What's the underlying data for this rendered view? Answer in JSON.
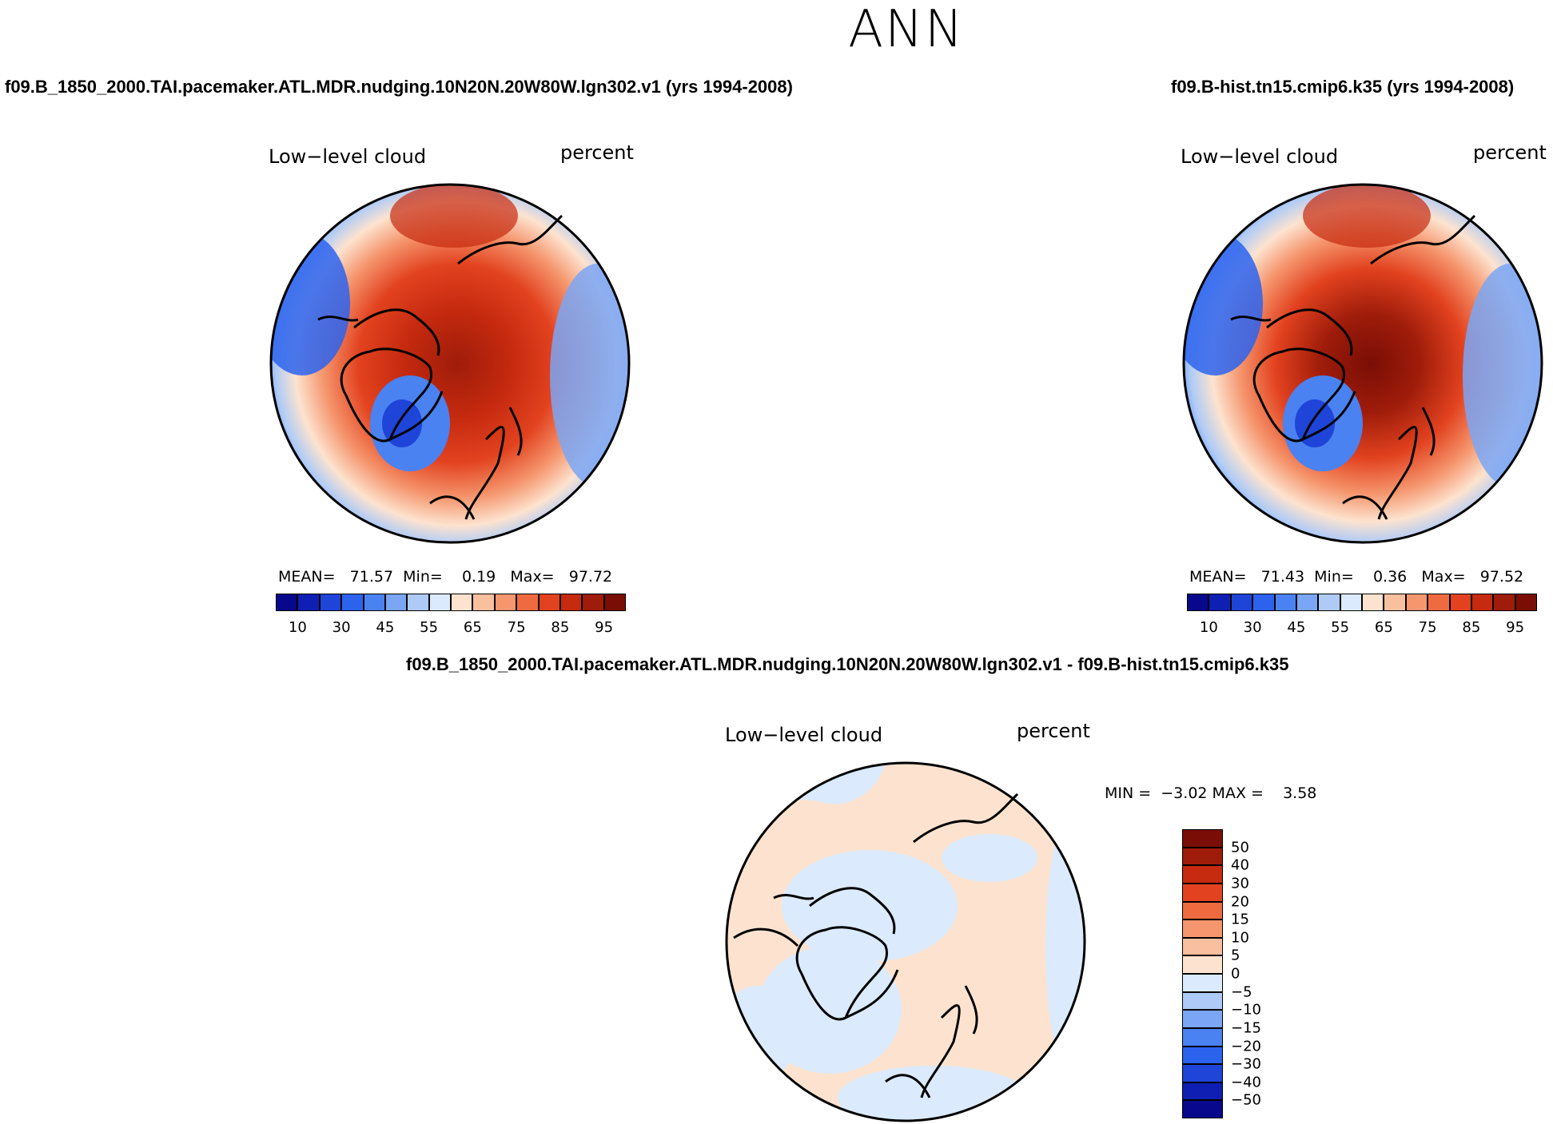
{
  "title": "ANN",
  "left_panel": {
    "case_title": "f09.B_1850_2000.TAI.pacemaker.ATL.MDR.nudging.10N20N.20W80W.lgn302.v1 (yrs 1994-2008)",
    "variable": "Low−level cloud",
    "units": "percent",
    "stats": {
      "mean_label": "MEAN=",
      "mean": "71.57",
      "min_label": "Min=",
      "min": "0.19",
      "max_label": "Max=",
      "max": "97.72"
    }
  },
  "right_panel": {
    "case_title": "f09.B-hist.tn15.cmip6.k35 (yrs 1994-2008)",
    "variable": "Low−level cloud",
    "units": "percent",
    "stats": {
      "mean_label": "MEAN=",
      "mean": "71.43",
      "min_label": "Min=",
      "min": "0.36",
      "max_label": "Max=",
      "max": "97.52"
    }
  },
  "diff_panel": {
    "case_title": "f09.B_1850_2000.TAI.pacemaker.ATL.MDR.nudging.10N20N.20W80W.lgn302.v1 - f09.B-hist.tn15.cmip6.k35",
    "variable": "Low−level cloud",
    "units": "percent",
    "stats": {
      "min_label": "MIN =",
      "min": "−3.02",
      "max_label": "MAX =",
      "max": "3.58"
    }
  },
  "chart_data": [
    {
      "type": "heatmap",
      "projection": "north-polar-stereographic",
      "title": "f09.B_1850_2000.TAI.pacemaker.ATL.MDR.nudging.10N20N.20W80W.lgn302.v1 (yrs 1994-2008)",
      "variable": "Low-level cloud",
      "units": "percent",
      "mean": 71.57,
      "min": 0.19,
      "max": 97.72,
      "colorbar_levels": [
        10,
        20,
        30,
        40,
        45,
        50,
        55,
        60,
        65,
        70,
        75,
        80,
        85,
        90,
        95
      ],
      "colorbar_tick_labels": [
        "10",
        "30",
        "45",
        "55",
        "65",
        "75",
        "85",
        "95"
      ],
      "colors": [
        "#08088c",
        "#0f1fb4",
        "#1f44d8",
        "#2c63ee",
        "#4a82f2",
        "#7aa6f5",
        "#aecbf7",
        "#dbeafc",
        "#fde3cf",
        "#f9c0a0",
        "#f5966e",
        "#f06a40",
        "#e2421f",
        "#c62a0f",
        "#9f1c0a",
        "#7a0e06"
      ],
      "legend": "bottom"
    },
    {
      "type": "heatmap",
      "projection": "north-polar-stereographic",
      "title": "f09.B-hist.tn15.cmip6.k35 (yrs 1994-2008)",
      "variable": "Low-level cloud",
      "units": "percent",
      "mean": 71.43,
      "min": 0.36,
      "max": 97.52,
      "colorbar_levels": [
        10,
        20,
        30,
        40,
        45,
        50,
        55,
        60,
        65,
        70,
        75,
        80,
        85,
        90,
        95
      ],
      "colorbar_tick_labels": [
        "10",
        "30",
        "45",
        "55",
        "65",
        "75",
        "85",
        "95"
      ],
      "colors": [
        "#08088c",
        "#0f1fb4",
        "#1f44d8",
        "#2c63ee",
        "#4a82f2",
        "#7aa6f5",
        "#aecbf7",
        "#dbeafc",
        "#fde3cf",
        "#f9c0a0",
        "#f5966e",
        "#f06a40",
        "#e2421f",
        "#c62a0f",
        "#9f1c0a",
        "#7a0e06"
      ],
      "legend": "bottom"
    },
    {
      "type": "heatmap",
      "projection": "north-polar-stereographic",
      "title": "f09.B_1850_2000.TAI.pacemaker.ATL.MDR.nudging.10N20N.20W80W.lgn302.v1 - f09.B-hist.tn15.cmip6.k35",
      "variable": "Low-level cloud",
      "units": "percent",
      "min": -3.02,
      "max": 3.58,
      "colorbar_levels": [
        50,
        40,
        30,
        20,
        15,
        10,
        5,
        0,
        -5,
        -10,
        -15,
        -20,
        -30,
        -40,
        -50
      ],
      "colorbar_tick_labels": [
        "50",
        "40",
        "30",
        "20",
        "15",
        "10",
        "5",
        "0",
        "−5",
        "−10",
        "−15",
        "−20",
        "−30",
        "−40",
        "−50"
      ],
      "colors": [
        "#7a0e06",
        "#9f1c0a",
        "#c62a0f",
        "#e2421f",
        "#f06a40",
        "#f5966e",
        "#f9c0a0",
        "#fde3cf",
        "#dbeafc",
        "#aecbf7",
        "#7aa6f5",
        "#4a82f2",
        "#2c63ee",
        "#1f44d8",
        "#0f1fb4",
        "#08088c"
      ],
      "legend": "right"
    }
  ]
}
